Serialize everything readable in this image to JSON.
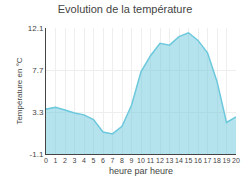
{
  "chart_data": {
    "type": "area",
    "title": "Evolution de la température",
    "xlabel": "heure par heure",
    "ylabel": "Température en °C",
    "x": [
      0,
      1,
      2,
      3,
      4,
      5,
      6,
      7,
      8,
      9,
      10,
      11,
      12,
      13,
      14,
      15,
      16,
      17,
      18,
      19,
      20
    ],
    "values": [
      3.6,
      3.8,
      3.5,
      3.2,
      3.0,
      2.5,
      1.2,
      1.0,
      1.8,
      4.0,
      7.5,
      9.2,
      10.5,
      10.3,
      11.2,
      11.6,
      10.8,
      9.5,
      6.5,
      2.2,
      2.8
    ],
    "color": "#6cc8dc",
    "xlim": [
      0,
      20
    ],
    "xticks": [
      0,
      1,
      2,
      3,
      4,
      5,
      6,
      7,
      8,
      9,
      10,
      11,
      12,
      13,
      14,
      15,
      16,
      17,
      18,
      19,
      20
    ],
    "ylim": [
      -1.1,
      12.1
    ],
    "yticks": [
      -1.1,
      3.3,
      7.7,
      12.1
    ],
    "grid": true
  }
}
